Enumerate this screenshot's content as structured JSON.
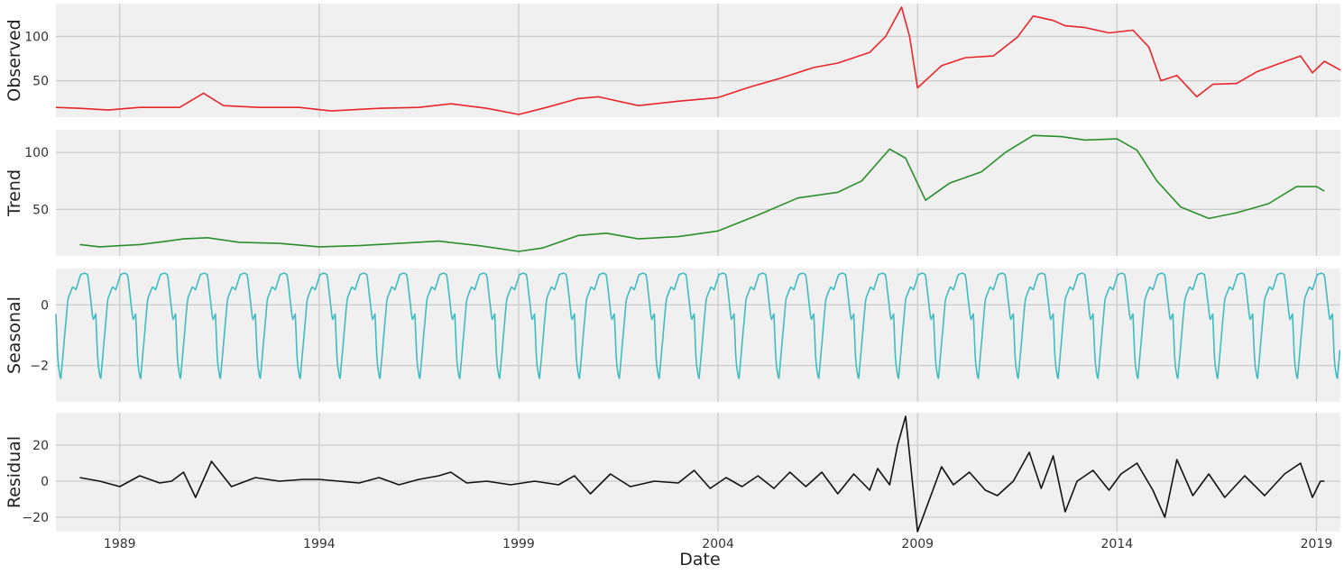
{
  "figure": {
    "background": "#ffffff",
    "panel_background": "#f0f0f0",
    "grid_color": "#cbcbcb"
  },
  "x_axis": {
    "label": "Date",
    "xlim": [
      1987.4,
      2019.6
    ],
    "ticks": [
      {
        "value": 1989,
        "label": "1989"
      },
      {
        "value": 1994,
        "label": "1994"
      },
      {
        "value": 1999,
        "label": "1999"
      },
      {
        "value": 2004,
        "label": "2004"
      },
      {
        "value": 2009,
        "label": "2009"
      },
      {
        "value": 2014,
        "label": "2014"
      },
      {
        "value": 2019,
        "label": "2019"
      }
    ]
  },
  "chart_data": [
    {
      "type": "line",
      "ylabel": "Observed",
      "color": "#e8262a",
      "ylim": [
        9,
        137
      ],
      "yticks": [
        {
          "value": 50,
          "label": "50"
        },
        {
          "value": 100,
          "label": "100"
        }
      ],
      "series": [
        {
          "x": [
            1987.4,
            1988.0,
            1988.7,
            1989.5,
            1990.5,
            1991.1,
            1991.6,
            1992.5,
            1993.5,
            1994.3,
            1995.5,
            1996.5,
            1997.3,
            1998.2,
            1999.0,
            1999.7,
            2000.5,
            2001.0,
            2002.0,
            2003.0,
            2004.0,
            2004.8,
            2005.5,
            2006.4,
            2007.0,
            2007.8,
            2008.2,
            2008.6,
            2008.8,
            2009.0,
            2009.6,
            2010.2,
            2010.9,
            2011.5,
            2011.9,
            2012.4,
            2012.7,
            2013.2,
            2013.8,
            2014.4,
            2014.8,
            2015.1,
            2015.5,
            2016.0,
            2016.4,
            2017.0,
            2017.5,
            2018.1,
            2018.6,
            2018.9,
            2019.2,
            2019.6
          ],
          "y": [
            20,
            19,
            17,
            20,
            20,
            36,
            22,
            20,
            20,
            16,
            19,
            20,
            24,
            19,
            12,
            20,
            30,
            32,
            22,
            27,
            31,
            43,
            52,
            65,
            70,
            82,
            100,
            133,
            100,
            42,
            67,
            76,
            78,
            99,
            123,
            118,
            112,
            110,
            104,
            107,
            88,
            50,
            56,
            32,
            46,
            47,
            60,
            70,
            78,
            59,
            72,
            62
          ]
        }
      ]
    },
    {
      "type": "line",
      "ylabel": "Trend",
      "color": "#2a8f2a",
      "ylim": [
        9,
        120
      ],
      "yticks": [
        {
          "value": 50,
          "label": "50"
        },
        {
          "value": 100,
          "label": "100"
        }
      ],
      "series": [
        {
          "x": [
            1988.0,
            1988.5,
            1989.5,
            1990.2,
            1990.6,
            1991.2,
            1992.0,
            1993.0,
            1994.0,
            1995.0,
            1996.0,
            1997.0,
            1998.0,
            1999.0,
            1999.6,
            2000.5,
            2001.2,
            2002.0,
            2003.0,
            2004.0,
            2005.0,
            2006.0,
            2007.0,
            2007.6,
            2008.3,
            2008.7,
            2009.2,
            2009.8,
            2010.6,
            2011.2,
            2011.9,
            2012.6,
            2013.2,
            2014.0,
            2014.5,
            2015.0,
            2015.6,
            2016.3,
            2017.0,
            2017.8,
            2018.5,
            2019.0,
            2019.2
          ],
          "y": [
            19,
            17,
            19,
            22,
            24,
            25,
            21,
            20,
            17,
            18,
            20,
            22,
            18,
            13,
            16,
            27,
            29,
            24,
            26,
            31,
            45,
            60,
            65,
            75,
            103,
            95,
            58,
            73,
            83,
            100,
            115,
            114,
            111,
            112,
            102,
            75,
            52,
            42,
            47,
            55,
            70,
            70,
            66
          ]
        }
      ]
    },
    {
      "type": "line",
      "ylabel": "Seasonal",
      "color": "#40bcc0",
      "ylim": [
        -3.2,
        1.2
      ],
      "yticks": [
        {
          "value": -2,
          "label": "−2"
        },
        {
          "value": 0,
          "label": "0"
        }
      ],
      "period_years": 1,
      "cycle_phase": [
        0.0,
        0.05,
        0.12,
        0.2,
        0.3,
        0.42,
        0.5,
        0.62,
        0.72,
        0.8,
        0.86,
        0.93,
        1.0
      ],
      "cycle_values": [
        -0.3,
        -1.9,
        -2.5,
        -1.3,
        0.2,
        0.6,
        0.5,
        1.0,
        1.05,
        1.0,
        0.3,
        -0.5,
        -0.3
      ],
      "series": [
        {
          "x_start": 1987.4,
          "x_end": 2019.6
        }
      ]
    },
    {
      "type": "line",
      "ylabel": "Residual",
      "color": "#111111",
      "ylim": [
        -28,
        38
      ],
      "yticks": [
        {
          "value": -20,
          "label": "−20"
        },
        {
          "value": 0,
          "label": "0"
        },
        {
          "value": 20,
          "label": "20"
        }
      ],
      "series": [
        {
          "x": [
            1988.0,
            1988.5,
            1989.0,
            1989.5,
            1990.0,
            1990.3,
            1990.6,
            1990.9,
            1991.3,
            1991.8,
            1992.4,
            1993.0,
            1993.6,
            1994.0,
            1994.5,
            1995.0,
            1995.5,
            1996.0,
            1996.5,
            1997.0,
            1997.3,
            1997.7,
            1998.2,
            1998.8,
            1999.4,
            2000.0,
            2000.4,
            2000.8,
            2001.3,
            2001.8,
            2002.4,
            2003.0,
            2003.4,
            2003.8,
            2004.2,
            2004.6,
            2005.0,
            2005.4,
            2005.8,
            2006.2,
            2006.6,
            2007.0,
            2007.4,
            2007.8,
            2008.0,
            2008.3,
            2008.5,
            2008.7,
            2009.0,
            2009.3,
            2009.6,
            2009.9,
            2010.3,
            2010.7,
            2011.0,
            2011.4,
            2011.8,
            2012.1,
            2012.4,
            2012.7,
            2013.0,
            2013.4,
            2013.8,
            2014.1,
            2014.5,
            2014.9,
            2015.2,
            2015.5,
            2015.9,
            2016.3,
            2016.7,
            2017.2,
            2017.7,
            2018.2,
            2018.6,
            2018.9,
            2019.1,
            2019.2
          ],
          "y": [
            2,
            0,
            -3,
            3,
            -1,
            0,
            5,
            -9,
            11,
            -3,
            2,
            0,
            1,
            1,
            0,
            -1,
            2,
            -2,
            1,
            3,
            5,
            -1,
            0,
            -2,
            0,
            -2,
            3,
            -7,
            4,
            -3,
            0,
            -1,
            6,
            -4,
            2,
            -3,
            3,
            -4,
            5,
            -3,
            5,
            -7,
            4,
            -5,
            7,
            -2,
            20,
            36,
            -28,
            -10,
            8,
            -2,
            5,
            -5,
            -8,
            0,
            16,
            -4,
            14,
            -17,
            0,
            6,
            -5,
            4,
            10,
            -5,
            -20,
            12,
            -8,
            4,
            -9,
            3,
            -8,
            4,
            10,
            -9,
            0,
            0
          ]
        }
      ]
    }
  ]
}
